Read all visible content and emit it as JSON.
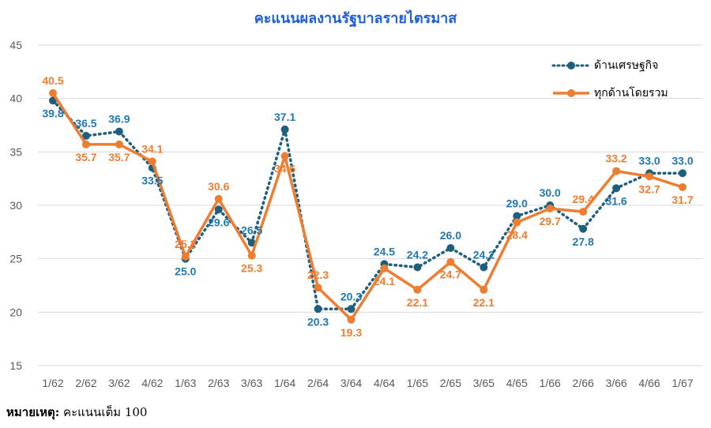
{
  "chart_data": {
    "type": "line",
    "title": "คะแนนผลงานรัฐบาลรายไตรมาส",
    "categories": [
      "1/62",
      "2/62",
      "3/62",
      "4/62",
      "1/63",
      "2/63",
      "3/63",
      "1/64",
      "2/64",
      "3/64",
      "4/64",
      "1/65",
      "2/65",
      "3/65",
      "4/65",
      "1/66",
      "2/66",
      "3/66",
      "4/66",
      "1/67"
    ],
    "ylim": [
      15,
      45
    ],
    "yticks": [
      15,
      20,
      25,
      30,
      35,
      40,
      45
    ],
    "grid": true,
    "legend_position": "top-right",
    "series": [
      {
        "name": "ด้านเศรษฐกิจ",
        "color": "#1f5f7e",
        "label_color": "#1f78b4",
        "style": "dotted",
        "values": [
          39.8,
          36.5,
          36.9,
          33.5,
          25.0,
          29.6,
          26.5,
          37.1,
          20.3,
          20.3,
          24.5,
          24.2,
          26.0,
          24.2,
          29.0,
          30.0,
          27.8,
          31.6,
          33.0,
          33.0
        ],
        "labels": [
          "39.8",
          "36.5",
          "36.9",
          "33.5",
          "25.0",
          "29.6",
          "26.5",
          "37.1",
          "20.3",
          "20.3",
          "24.5",
          "24.2",
          "26.0",
          "24.2",
          "29.0",
          "30.0",
          "27.8",
          "31.6",
          "33.0",
          "33.0"
        ]
      },
      {
        "name": "ทุกด้านโดยรวม",
        "color": "#ed7d31",
        "label_color": "#ed7d31",
        "style": "solid",
        "values": [
          40.5,
          35.7,
          35.7,
          34.1,
          25.2,
          30.6,
          25.3,
          34.6,
          22.3,
          19.3,
          24.1,
          22.1,
          24.7,
          22.1,
          28.4,
          29.7,
          29.4,
          33.2,
          32.7,
          31.7
        ],
        "labels": [
          "40.5",
          "35.7",
          "35.7",
          "34.1",
          "25.2",
          "30.6",
          "25.3",
          "34.6",
          "22.3",
          "19.3",
          "24.1",
          "22.1",
          "24.7",
          "22.1",
          "28.4",
          "29.7",
          "29.4",
          "33.2",
          "32.7",
          "31.7"
        ]
      }
    ]
  },
  "footnote": {
    "label": "หมายเหตุ:",
    "text": " คะแนนเต็ม 100"
  }
}
